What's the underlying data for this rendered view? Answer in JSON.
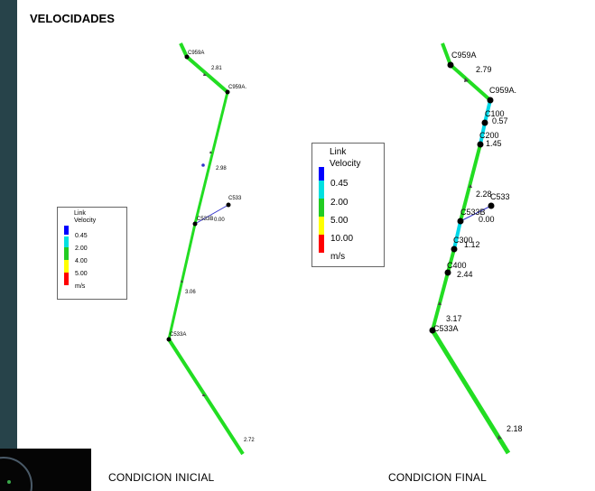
{
  "title": "VELOCIDADES",
  "captions": {
    "initial": "CONDICION INICIAL",
    "final": "CONDICION FINAL"
  },
  "legend": {
    "line1": "Link",
    "line2": "Velocity",
    "levels": [
      "0.45",
      "2.00",
      "4.00",
      "5.00"
    ],
    "levels_final": [
      "0.45",
      "2.00",
      "5.00",
      "10.00"
    ],
    "unit": "m/s",
    "colors": [
      "#0000ff",
      "#00e0e0",
      "#22cc22",
      "#ffff00",
      "#ff0000"
    ]
  },
  "initial": {
    "nodes": {
      "c959a": "C959A",
      "c959a_dot": "C959A.",
      "c533": "C533",
      "c533b": "C533B",
      "c533a": "C533A"
    },
    "values": {
      "v1": "2.81",
      "v2": "2.98",
      "v3": "0.00",
      "v4": "3.06",
      "v5": "2.72"
    }
  },
  "final": {
    "nodes": {
      "c959a": "C959A",
      "c959a_dot": "C959A.",
      "c100": "C100",
      "c200": "C200",
      "c533": "C533",
      "c533b": "C533B",
      "c300": "C300",
      "c400": "C400",
      "c533a": "C533A"
    },
    "values": {
      "v1": "2.79",
      "v2": "0.57",
      "v3": "1.45",
      "v4": "2.28",
      "v5": "0.00",
      "v6": "1.12",
      "v7": "2.44",
      "v8": "3.17",
      "v9": "2.18"
    }
  },
  "colors": {
    "green": "#22dd22",
    "cyan": "#00d8e8",
    "blue_link": "#3333cc",
    "node": "#000000"
  }
}
